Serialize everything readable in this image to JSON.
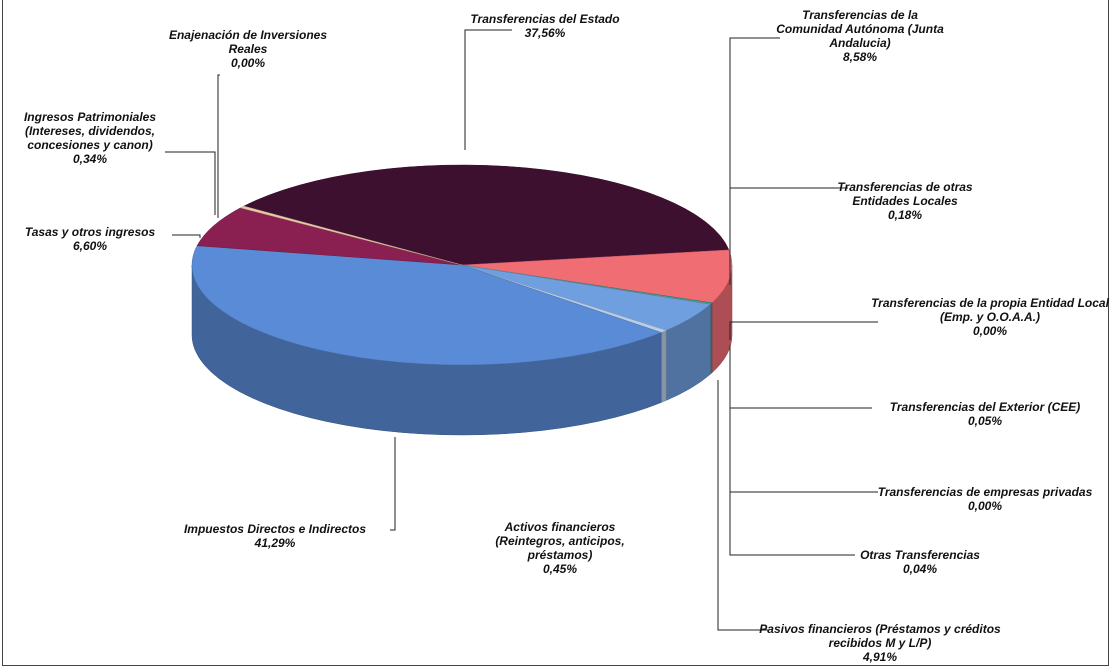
{
  "chart_data": {
    "type": "pie3d",
    "categories": [
      "Enajenación de Inversiones Reales",
      "Transferencias del Estado",
      "Transferencias de la Comunidad Autónoma (Junta Andalucia)",
      "Transferencias de otras Entidades Locales",
      "Transferencias de la propia Entidad Local (Emp. y O.O.A.A.)",
      "Transferencias del Exterior (CEE)",
      "Transferencias de empresas privadas",
      "Otras Transferencias",
      "Pasivos financieros (Préstamos y créditos recibidos M y L/P)",
      "Activos financieros (Reintegros, anticipos, préstamos)",
      "Impuestos Directos e Indirectos",
      "Tasas y otros ingresos",
      "Ingresos Patrimoniales (Intereses, dividendos, concesiones y canon)"
    ],
    "values": [
      0,
      37.56,
      8.58,
      0.18,
      0,
      0.05,
      0,
      0.04,
      4.91,
      0.45,
      41.29,
      6.6,
      0.34
    ],
    "value_labels": [
      "0,00%",
      "37,56%",
      "8,58%",
      "0,18%",
      "0,00%",
      "0,05%",
      "0,00%",
      "0,04%",
      "4,91%",
      "0,45%",
      "41,29%",
      "6,60%",
      "0,34%"
    ],
    "colors": [
      "#c9b38a",
      "#3e1030",
      "#f06d74",
      "#2f9a8f",
      "#7fb88a",
      "#9fd0c8",
      "#d6a33a",
      "#6aa0b0",
      "#6f9fdf",
      "#b9cde8",
      "#5a8bd6",
      "#8a1f52",
      "#e8c9a8"
    ]
  }
}
